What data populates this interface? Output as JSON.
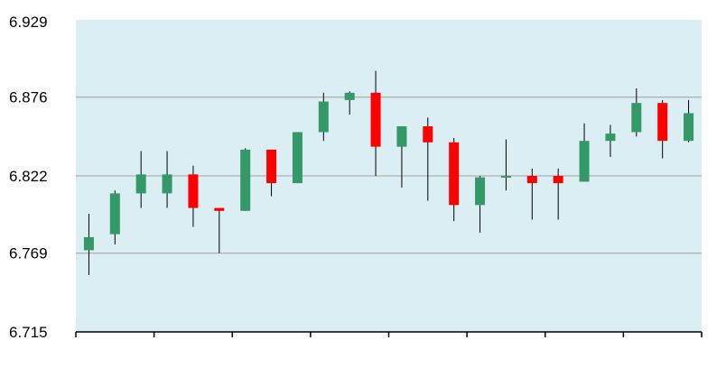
{
  "chart_data": {
    "type": "candlestick",
    "ylim": [
      6.715,
      6.929
    ],
    "yticks": [
      "6.715",
      "6.769",
      "6.822",
      "6.876",
      "6.929"
    ],
    "grid": true,
    "candles": [
      {
        "open": 6.771,
        "close": 6.78,
        "high": 6.796,
        "low": 6.754
      },
      {
        "open": 6.782,
        "close": 6.81,
        "high": 6.812,
        "low": 6.775
      },
      {
        "open": 6.81,
        "close": 6.823,
        "high": 6.839,
        "low": 6.8
      },
      {
        "open": 6.81,
        "close": 6.823,
        "high": 6.839,
        "low": 6.8
      },
      {
        "open": 6.823,
        "close": 6.8,
        "high": 6.829,
        "low": 6.787
      },
      {
        "open": 6.8,
        "close": 6.798,
        "high": 6.8,
        "low": 6.769
      },
      {
        "open": 6.798,
        "close": 6.84,
        "high": 6.841,
        "low": 6.798
      },
      {
        "open": 6.84,
        "close": 6.817,
        "high": 6.84,
        "low": 6.808
      },
      {
        "open": 6.817,
        "close": 6.852,
        "high": 6.852,
        "low": 6.817
      },
      {
        "open": 6.852,
        "close": 6.873,
        "high": 6.879,
        "low": 6.846
      },
      {
        "open": 6.874,
        "close": 6.879,
        "high": 6.88,
        "low": 6.864
      },
      {
        "open": 6.879,
        "close": 6.842,
        "high": 6.894,
        "low": 6.822
      },
      {
        "open": 6.842,
        "close": 6.856,
        "high": 6.856,
        "low": 6.814
      },
      {
        "open": 6.856,
        "close": 6.845,
        "high": 6.862,
        "low": 6.805
      },
      {
        "open": 6.845,
        "close": 6.802,
        "high": 6.848,
        "low": 6.791
      },
      {
        "open": 6.802,
        "close": 6.821,
        "high": 6.822,
        "low": 6.783
      },
      {
        "open": 6.822,
        "close": 6.822,
        "high": 6.847,
        "low": 6.812
      },
      {
        "open": 6.822,
        "close": 6.817,
        "high": 6.827,
        "low": 6.792
      },
      {
        "open": 6.822,
        "close": 6.817,
        "high": 6.827,
        "low": 6.792
      },
      {
        "open": 6.818,
        "close": 6.846,
        "high": 6.858,
        "low": 6.818
      },
      {
        "open": 6.846,
        "close": 6.851,
        "high": 6.857,
        "low": 6.835
      },
      {
        "open": 6.852,
        "close": 6.872,
        "high": 6.882,
        "low": 6.849
      },
      {
        "open": 6.872,
        "close": 6.846,
        "high": 6.874,
        "low": 6.834
      },
      {
        "open": 6.846,
        "close": 6.865,
        "high": 6.874,
        "low": 6.845
      }
    ],
    "colors": {
      "up": "#339966",
      "down": "#ff0000",
      "plot_bg": "#dbeef3",
      "grid": "#a0a0a0",
      "axis": "#000000"
    }
  }
}
